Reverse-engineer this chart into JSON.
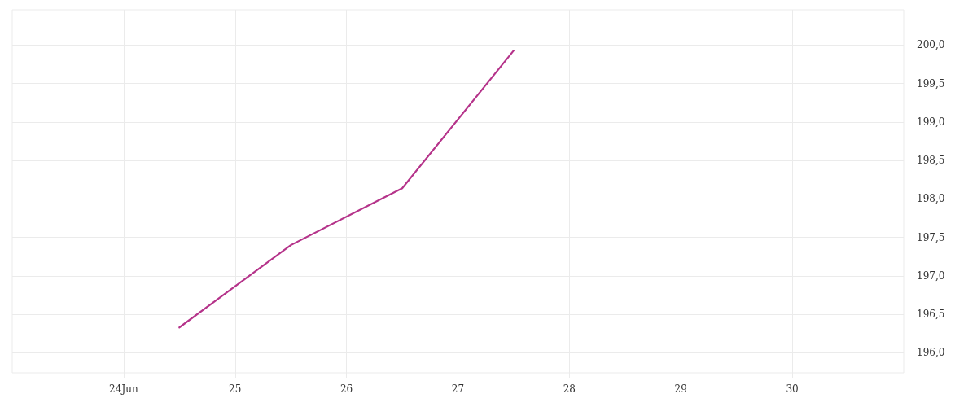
{
  "chart_data": {
    "type": "line",
    "x": [
      24.5,
      25.5,
      26.5,
      27.5
    ],
    "series": [
      {
        "color": "#b5338a",
        "values": [
          196.33,
          197.4,
          198.14,
          199.93
        ]
      }
    ],
    "xlim": [
      23,
      31
    ],
    "xticks": [
      {
        "value": 24,
        "label": "24Jun"
      },
      25,
      26,
      27,
      28,
      29,
      30
    ],
    "ylim": [
      195.74,
      200.46
    ],
    "yticks": [
      {
        "value": 196,
        "label": "196,0"
      },
      {
        "value": 196.5,
        "label": "196,5"
      },
      {
        "value": 197,
        "label": "197,0"
      },
      {
        "value": 197.5,
        "label": "197,5"
      },
      {
        "value": 198,
        "label": "198,0"
      },
      {
        "value": 198.5,
        "label": "198,5"
      },
      {
        "value": 199,
        "label": "199,0"
      },
      {
        "value": 199.5,
        "label": "199,5"
      },
      {
        "value": 200,
        "label": "200,0"
      }
    ],
    "grid": true,
    "marker": "none",
    "line_style": "solid"
  }
}
